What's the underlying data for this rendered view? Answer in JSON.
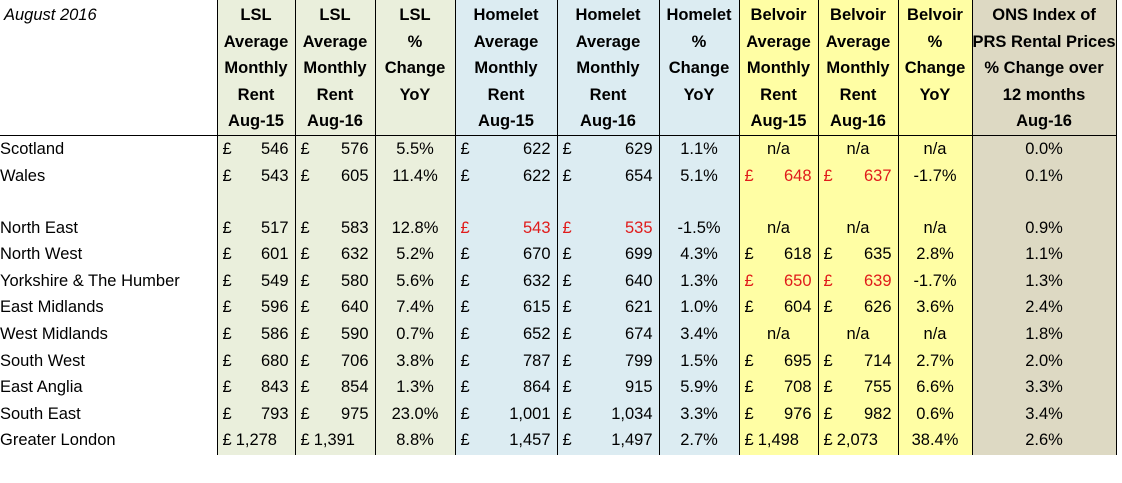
{
  "sheet": {
    "corner_label": "August 2016",
    "headers": [
      [
        "LSL",
        "Average",
        "Monthly",
        "Rent",
        "Aug-15"
      ],
      [
        "LSL",
        "Average",
        "Monthly",
        "Rent",
        "Aug-16"
      ],
      [
        "LSL",
        "%",
        "Change",
        "YoY"
      ],
      [
        "Homelet",
        "Average",
        "Monthly",
        "Rent",
        "Aug-15"
      ],
      [
        "Homelet",
        "Average",
        "Monthly",
        "Rent",
        "Aug-16"
      ],
      [
        "Homelet",
        "%",
        "Change",
        "YoY"
      ],
      [
        "Belvoir",
        "Average",
        "Monthly",
        "Rent",
        "Aug-15"
      ],
      [
        "Belvoir",
        "Average",
        "Monthly",
        "Rent",
        "Aug-16"
      ],
      [
        "Belvoir",
        "%",
        "Change",
        "YoY"
      ],
      [
        "ONS Index of",
        "PRS Rental Prices",
        "% Change over",
        "12 months",
        "Aug-16"
      ]
    ],
    "currency_symbol": "£",
    "na_text": "n/a",
    "colors": {
      "lsl": "#eaefdc",
      "homelet": "#dcecf2",
      "belvoir": "#fffea4",
      "ons": "#ddd9c3",
      "negative_text": "#e01b1b"
    },
    "rows": [
      {
        "region": "Scotland",
        "lsl15": "546",
        "lsl16": "576",
        "lslPct": "5.5%",
        "hom15": "622",
        "hom16": "629",
        "homPct": "1.1%",
        "bel15": "",
        "bel16": "",
        "belPct": "",
        "ons": "0.0%",
        "homRed": false,
        "belRed": false,
        "belNA": true
      },
      {
        "region": "Wales",
        "lsl15": "543",
        "lsl16": "605",
        "lslPct": "11.4%",
        "hom15": "622",
        "hom16": "654",
        "homPct": "5.1%",
        "bel15": "648",
        "bel16": "637",
        "belPct": "-1.7%",
        "ons": "0.1%",
        "homRed": false,
        "belRed": true,
        "belNA": false
      },
      {
        "spacer": true
      },
      {
        "region": "North East",
        "lsl15": "517",
        "lsl16": "583",
        "lslPct": "12.8%",
        "hom15": "543",
        "hom16": "535",
        "homPct": "-1.5%",
        "bel15": "",
        "bel16": "",
        "belPct": "",
        "ons": "0.9%",
        "homRed": true,
        "belRed": false,
        "belNA": true
      },
      {
        "region": "North West",
        "lsl15": "601",
        "lsl16": "632",
        "lslPct": "5.2%",
        "hom15": "670",
        "hom16": "699",
        "homPct": "4.3%",
        "bel15": "618",
        "bel16": "635",
        "belPct": "2.8%",
        "ons": "1.1%",
        "homRed": false,
        "belRed": false,
        "belNA": false
      },
      {
        "region": "Yorkshire & The Humber",
        "lsl15": "549",
        "lsl16": "580",
        "lslPct": "5.6%",
        "hom15": "632",
        "hom16": "640",
        "homPct": "1.3%",
        "bel15": "650",
        "bel16": "639",
        "belPct": "-1.7%",
        "ons": "1.3%",
        "homRed": false,
        "belRed": true,
        "belNA": false
      },
      {
        "region": "East Midlands",
        "lsl15": "596",
        "lsl16": "640",
        "lslPct": "7.4%",
        "hom15": "615",
        "hom16": "621",
        "homPct": "1.0%",
        "bel15": "604",
        "bel16": "626",
        "belPct": "3.6%",
        "ons": "2.4%",
        "homRed": false,
        "belRed": false,
        "belNA": false
      },
      {
        "region": "West Midlands",
        "lsl15": "586",
        "lsl16": "590",
        "lslPct": "0.7%",
        "hom15": "652",
        "hom16": "674",
        "homPct": "3.4%",
        "bel15": "",
        "bel16": "",
        "belPct": "",
        "ons": "1.8%",
        "homRed": false,
        "belRed": false,
        "belNA": true
      },
      {
        "region": "South West",
        "lsl15": "680",
        "lsl16": "706",
        "lslPct": "3.8%",
        "hom15": "787",
        "hom16": "799",
        "homPct": "1.5%",
        "bel15": "695",
        "bel16": "714",
        "belPct": "2.7%",
        "ons": "2.0%",
        "homRed": false,
        "belRed": false,
        "belNA": false
      },
      {
        "region": "East Anglia",
        "lsl15": "843",
        "lsl16": "854",
        "lslPct": "1.3%",
        "hom15": "864",
        "hom16": "915",
        "homPct": "5.9%",
        "bel15": "708",
        "bel16": "755",
        "belPct": "6.6%",
        "ons": "3.3%",
        "homRed": false,
        "belRed": false,
        "belNA": false
      },
      {
        "region": "South East",
        "lsl15": "793",
        "lsl16": "975",
        "lslPct": "23.0%",
        "hom15": "1,001",
        "hom16": "1,034",
        "homPct": "3.3%",
        "bel15": "976",
        "bel16": "982",
        "belPct": "0.6%",
        "ons": "3.4%",
        "homRed": false,
        "belRed": false,
        "belNA": false
      },
      {
        "region": "Greater London",
        "lsl15": "1,278",
        "lsl16": "1,391",
        "lslPct": "8.8%",
        "hom15": "1,457",
        "hom16": "1,497",
        "homPct": "2.7%",
        "bel15": "1,498",
        "bel16": "2,073",
        "belPct": "38.4%",
        "ons": "2.6%",
        "homRed": false,
        "belRed": false,
        "belNA": false,
        "compactCurrency": true
      }
    ]
  }
}
